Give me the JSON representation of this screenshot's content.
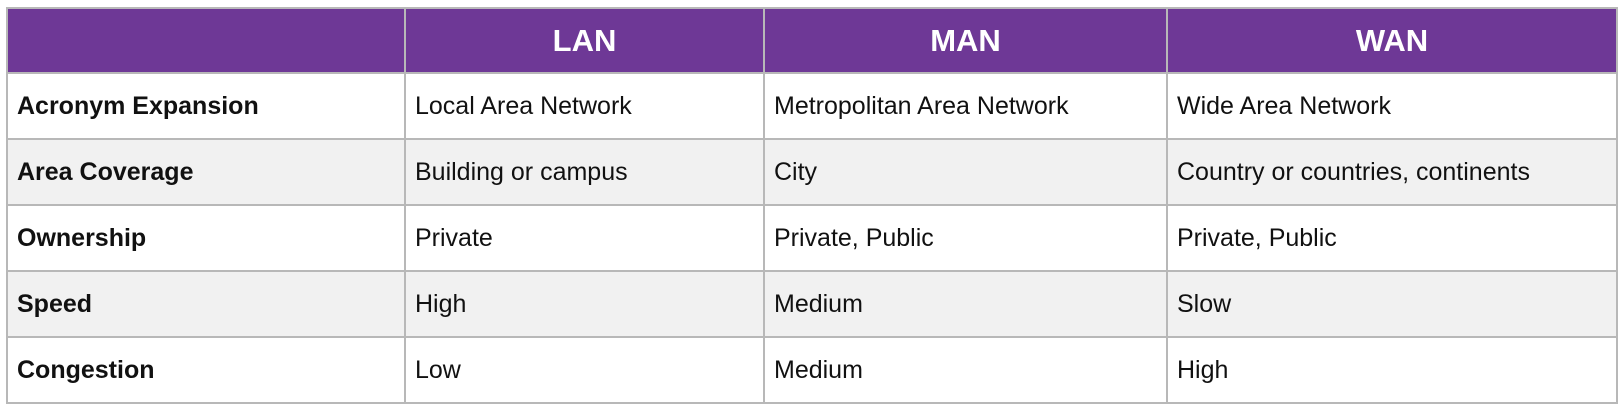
{
  "table": {
    "headers": [
      "",
      "LAN",
      "MAN",
      "WAN"
    ],
    "rows": [
      {
        "label": "Acronym Expansion",
        "cells": [
          "Local Area Network",
          "Metropolitan Area Network",
          "Wide Area Network"
        ]
      },
      {
        "label": "Area Coverage",
        "cells": [
          "Building or campus",
          "City",
          "Country or countries, continents"
        ]
      },
      {
        "label": "Ownership",
        "cells": [
          "Private",
          "Private, Public",
          "Private, Public"
        ]
      },
      {
        "label": "Speed",
        "cells": [
          "High",
          "Medium",
          "Slow"
        ]
      },
      {
        "label": "Congestion",
        "cells": [
          "Low",
          "Medium",
          "High"
        ]
      }
    ]
  },
  "colors": {
    "header_background": "#6e3896",
    "header_text": "#ffffff",
    "alt_row_background": "#f1f1f1",
    "border": "#b8b8b8"
  }
}
